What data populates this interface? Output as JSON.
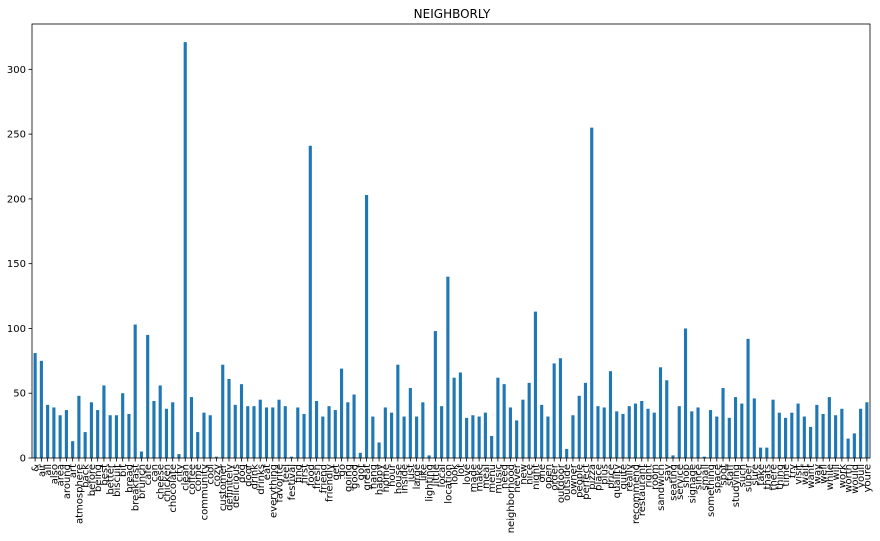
{
  "chart_data": {
    "type": "bar",
    "title": "NEIGHBORLY",
    "xlabel": "",
    "ylabel": "",
    "ylim": [
      0,
      335
    ],
    "yticks": [
      0,
      50,
      100,
      150,
      200,
      250,
      300
    ],
    "grid": false,
    "legend": "none",
    "bar_color": "#1f77b4",
    "categories": [
      "&",
      "air",
      "all",
      "also",
      "area",
      "around",
      "art",
      "atmosphere",
      "back",
      "before",
      "being",
      "best",
      "better",
      "biscuit",
      "bit",
      "bread",
      "breakfast",
      "brunch",
      "cafe",
      "can",
      "cheese",
      "chicken",
      "chocolate",
      "city",
      "clean",
      "coffee",
      "come",
      "community",
      "cool",
      "cozy",
      "customer",
      "definitely",
      "delicious",
      "dog",
      "door",
      "drink",
      "drinks",
      "eat",
      "everything",
      "favorite",
      "feel",
      "festival",
      "find",
      "first",
      "food",
      "fresh",
      "friend",
      "friendly",
      "get",
      "go",
      "going",
      "good",
      "got",
      "great",
      "hang",
      "happy",
      "home",
      "hour",
      "house",
      "inside",
      "just",
      "large",
      "like",
      "lighting",
      "little",
      "local",
      "location",
      "look",
      "lot",
      "love",
      "made",
      "make",
      "meal",
      "menu",
      "music",
      "need",
      "neighborhood",
      "never",
      "new",
      "nice",
      "night",
      "one",
      "open",
      "order",
      "outdoor",
      "outside",
      "owner",
      "people",
      "perfect",
      "pizza",
      "place",
      "plus",
      "price",
      "quality",
      "quite",
      "really",
      "recommend",
      "restaurant",
      "right",
      "room",
      "sandwich",
      "say",
      "seating",
      "service",
      "shop",
      "signage",
      "since",
      "small",
      "something",
      "space",
      "spot",
      "staff",
      "studying",
      "such",
      "super",
      "sure",
      "take",
      "thats",
      "there",
      "thing",
      "time",
      "try",
      "visit",
      "wait",
      "want",
      "way",
      "well",
      "while",
      "will",
      "work",
      "worth",
      "would",
      "youll",
      "youre"
    ],
    "values": [
      81,
      75,
      41,
      39,
      33,
      37,
      13,
      48,
      20,
      43,
      37,
      56,
      33,
      33,
      50,
      34,
      103,
      5,
      95,
      44,
      56,
      38,
      43,
      3,
      321,
      47,
      20,
      35,
      33,
      1,
      72,
      61,
      41,
      57,
      40,
      40,
      45,
      39,
      39,
      45,
      40,
      1,
      39,
      34,
      241,
      44,
      32,
      40,
      37,
      69,
      43,
      49,
      4,
      203,
      32,
      12,
      39,
      35,
      72,
      32,
      54,
      32,
      43,
      2,
      98,
      40,
      140,
      62,
      66,
      31,
      33,
      32,
      35,
      17,
      62,
      57,
      39,
      29,
      45,
      58,
      113,
      41,
      32,
      73,
      77,
      7,
      33,
      48,
      58,
      255,
      40,
      39,
      67,
      36,
      34,
      40,
      42,
      44,
      38,
      35,
      70,
      60,
      2,
      40,
      100,
      36,
      39,
      1,
      37,
      32,
      54,
      31,
      47,
      42,
      92,
      46,
      8,
      8,
      45,
      35,
      31,
      35,
      42,
      32,
      24,
      41,
      34,
      47,
      33,
      38,
      15,
      19,
      38,
      43
    ]
  }
}
